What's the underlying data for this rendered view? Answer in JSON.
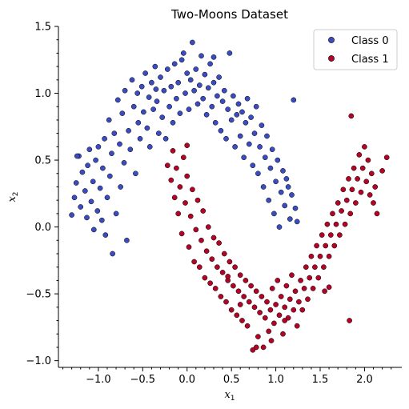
{
  "chart_data": {
    "type": "scatter",
    "title": "Two-Moons Dataset",
    "xlabel": "x",
    "xlabel_sub": "1",
    "ylabel": "x",
    "ylabel_sub": "2",
    "xlim": [
      -1.45,
      2.42
    ],
    "ylim": [
      -1.05,
      1.5
    ],
    "xticks": [
      -1.0,
      -0.5,
      0.0,
      0.5,
      1.0,
      1.5,
      2.0
    ],
    "xtick_labels": [
      "−1.0",
      "−0.5",
      "0.0",
      "0.5",
      "1.0",
      "1.5",
      "2.0"
    ],
    "yticks": [
      -1.0,
      -0.5,
      0.0,
      0.5,
      1.0,
      1.5
    ],
    "ytick_labels": [
      "−1.0",
      "−0.5",
      "0.0",
      "0.5",
      "1.0",
      "1.5"
    ],
    "grid": false,
    "legend_position": "top-right",
    "series": [
      {
        "name": "Class 0",
        "color": "#3b4cc0",
        "points": [
          [
            -1.3,
            0.09
          ],
          [
            -1.27,
            0.22
          ],
          [
            -1.25,
            0.33
          ],
          [
            -1.22,
            0.53
          ],
          [
            -1.2,
            0.15
          ],
          [
            -1.18,
            0.41
          ],
          [
            -1.15,
            0.27
          ],
          [
            -1.13,
            0.07
          ],
          [
            -1.12,
            0.46
          ],
          [
            -1.1,
            0.58
          ],
          [
            -1.08,
            0.19
          ],
          [
            -1.06,
            0.34
          ],
          [
            -1.05,
            -0.02
          ],
          [
            -1.03,
            0.5
          ],
          [
            -1.01,
            0.12
          ],
          [
            -1.0,
            0.6
          ],
          [
            -0.98,
            0.29
          ],
          [
            -0.96,
            0.05
          ],
          [
            -0.95,
            0.44
          ],
          [
            -0.93,
            0.66
          ],
          [
            -0.92,
            -0.06
          ],
          [
            -0.9,
            0.22
          ],
          [
            -0.88,
            0.8
          ],
          [
            -0.87,
            0.38
          ],
          [
            -0.85,
            0.55
          ],
          [
            -0.84,
            -0.2
          ],
          [
            -0.82,
            0.7
          ],
          [
            -0.8,
            0.1
          ],
          [
            -0.78,
            0.95
          ],
          [
            -0.76,
            0.62
          ],
          [
            -0.75,
            0.3
          ],
          [
            -0.73,
            0.85
          ],
          [
            -0.71,
            0.48
          ],
          [
            -0.7,
            1.02
          ],
          [
            -0.68,
            -0.1
          ],
          [
            -0.66,
            0.72
          ],
          [
            -0.64,
            0.58
          ],
          [
            -0.62,
            1.1
          ],
          [
            -0.6,
            0.9
          ],
          [
            -0.58,
            0.4
          ],
          [
            -0.56,
            1.0
          ],
          [
            -0.55,
            0.78
          ],
          [
            -0.53,
            0.66
          ],
          [
            -0.51,
            1.05
          ],
          [
            -0.49,
            0.86
          ],
          [
            -0.47,
            1.15
          ],
          [
            -0.45,
            0.74
          ],
          [
            -0.43,
            0.97
          ],
          [
            -0.42,
            0.6
          ],
          [
            -0.4,
            1.08
          ],
          [
            -0.38,
            0.88
          ],
          [
            -0.36,
            1.2
          ],
          [
            -0.34,
            0.94
          ],
          [
            -0.32,
            0.7
          ],
          [
            -0.3,
            1.12
          ],
          [
            -0.28,
            0.82
          ],
          [
            -0.26,
            1.02
          ],
          [
            -0.24,
            0.66
          ],
          [
            -0.22,
            1.18
          ],
          [
            -0.2,
            0.9
          ],
          [
            -0.18,
            1.05
          ],
          [
            -0.16,
            0.78
          ],
          [
            -0.14,
            1.22
          ],
          [
            -0.12,
            0.96
          ],
          [
            -0.1,
            1.08
          ],
          [
            -0.08,
            0.85
          ],
          [
            -0.06,
            1.25
          ],
          [
            -0.04,
            1.3
          ],
          [
            -0.02,
            1.0
          ],
          [
            0.0,
            1.15
          ],
          [
            0.02,
            0.88
          ],
          [
            0.04,
            1.1
          ],
          [
            0.06,
            1.38
          ],
          [
            0.08,
            1.02
          ],
          [
            0.1,
            1.18
          ],
          [
            0.12,
            0.92
          ],
          [
            0.14,
            1.06
          ],
          [
            0.16,
            1.28
          ],
          [
            0.18,
            0.96
          ],
          [
            0.2,
            1.14
          ],
          [
            0.22,
            0.84
          ],
          [
            0.24,
            1.04
          ],
          [
            0.26,
            1.22
          ],
          [
            0.28,
            0.9
          ],
          [
            0.3,
            1.08
          ],
          [
            0.32,
            0.78
          ],
          [
            0.34,
            0.98
          ],
          [
            0.36,
            1.12
          ],
          [
            0.38,
            0.72
          ],
          [
            0.4,
            0.94
          ],
          [
            0.42,
            1.02
          ],
          [
            0.44,
            0.66
          ],
          [
            0.46,
            0.88
          ],
          [
            0.48,
            1.3
          ],
          [
            0.5,
            0.8
          ],
          [
            0.52,
            0.98
          ],
          [
            0.54,
            0.6
          ],
          [
            0.56,
            0.84
          ],
          [
            0.58,
            0.92
          ],
          [
            0.6,
            0.68
          ],
          [
            0.62,
            0.86
          ],
          [
            0.64,
            0.52
          ],
          [
            0.66,
            0.78
          ],
          [
            0.68,
            0.96
          ],
          [
            0.7,
            0.62
          ],
          [
            0.72,
            0.82
          ],
          [
            0.74,
            0.46
          ],
          [
            0.76,
            0.7
          ],
          [
            0.78,
            0.9
          ],
          [
            0.8,
            0.4
          ],
          [
            0.82,
            0.6
          ],
          [
            0.84,
            0.76
          ],
          [
            0.86,
            0.3
          ],
          [
            0.88,
            0.52
          ],
          [
            0.9,
            0.68
          ],
          [
            0.92,
            0.2
          ],
          [
            0.94,
            0.44
          ],
          [
            0.96,
            0.58
          ],
          [
            0.98,
            0.1
          ],
          [
            1.0,
            0.34
          ],
          [
            1.02,
            0.5
          ],
          [
            1.04,
            0.0
          ],
          [
            1.06,
            0.26
          ],
          [
            1.08,
            0.42
          ],
          [
            1.1,
            0.16
          ],
          [
            1.12,
            0.36
          ],
          [
            1.14,
            0.3
          ],
          [
            1.16,
            0.06
          ],
          [
            1.18,
            0.24
          ],
          [
            1.2,
            0.95
          ],
          [
            1.22,
            0.14
          ],
          [
            1.24,
            0.04
          ],
          [
            -1.24,
            0.53
          ],
          [
            -0.35,
            1.03
          ],
          [
            0.3,
            1.27
          ]
        ]
      },
      {
        "name": "Class 1",
        "color": "#b40426",
        "points": [
          [
            -0.22,
            0.46
          ],
          [
            -0.18,
            0.35
          ],
          [
            -0.16,
            0.57
          ],
          [
            -0.14,
            0.22
          ],
          [
            -0.12,
            0.44
          ],
          [
            -0.1,
            0.1
          ],
          [
            -0.08,
            0.3
          ],
          [
            -0.06,
            -0.05
          ],
          [
            -0.04,
            0.52
          ],
          [
            -0.02,
            0.18
          ],
          [
            0.0,
            0.38
          ],
          [
            0.02,
            -0.15
          ],
          [
            0.04,
            0.08
          ],
          [
            0.06,
            0.28
          ],
          [
            0.08,
            -0.26
          ],
          [
            0.1,
            -0.02
          ],
          [
            0.12,
            0.2
          ],
          [
            0.14,
            -0.3
          ],
          [
            0.16,
            -0.1
          ],
          [
            0.18,
            0.12
          ],
          [
            0.2,
            -0.38
          ],
          [
            0.22,
            -0.18
          ],
          [
            0.24,
            0.0
          ],
          [
            0.26,
            -0.42
          ],
          [
            0.28,
            -0.24
          ],
          [
            0.3,
            -0.08
          ],
          [
            0.32,
            -0.46
          ],
          [
            0.34,
            -0.3
          ],
          [
            0.36,
            -0.12
          ],
          [
            0.38,
            -0.52
          ],
          [
            0.4,
            -0.34
          ],
          [
            0.42,
            -0.2
          ],
          [
            0.44,
            -0.56
          ],
          [
            0.46,
            -0.4
          ],
          [
            0.48,
            -0.26
          ],
          [
            0.5,
            -0.62
          ],
          [
            0.52,
            -0.44
          ],
          [
            0.54,
            -0.3
          ],
          [
            0.56,
            -0.66
          ],
          [
            0.58,
            -0.48
          ],
          [
            0.6,
            -0.36
          ],
          [
            0.62,
            -0.7
          ],
          [
            0.64,
            -0.52
          ],
          [
            0.66,
            -0.4
          ],
          [
            0.68,
            -0.74
          ],
          [
            0.7,
            -0.56
          ],
          [
            0.72,
            -0.44
          ],
          [
            0.74,
            -0.92
          ],
          [
            0.76,
            -0.6
          ],
          [
            0.78,
            -0.48
          ],
          [
            0.8,
            -0.82
          ],
          [
            0.82,
            -0.64
          ],
          [
            0.84,
            -0.52
          ],
          [
            0.86,
            -0.9
          ],
          [
            0.88,
            -0.68
          ],
          [
            0.9,
            -0.56
          ],
          [
            0.92,
            -0.78
          ],
          [
            0.94,
            -0.62
          ],
          [
            0.96,
            -0.46
          ],
          [
            0.98,
            -0.72
          ],
          [
            1.0,
            -0.58
          ],
          [
            1.02,
            -0.4
          ],
          [
            1.04,
            -0.66
          ],
          [
            1.06,
            -0.52
          ],
          [
            1.08,
            -0.8
          ],
          [
            1.1,
            -0.6
          ],
          [
            1.12,
            -0.44
          ],
          [
            1.14,
            -0.68
          ],
          [
            1.16,
            -0.54
          ],
          [
            1.18,
            -0.36
          ],
          [
            1.2,
            -0.62
          ],
          [
            1.22,
            -0.48
          ],
          [
            1.24,
            -0.74
          ],
          [
            1.26,
            -0.56
          ],
          [
            1.28,
            -0.4
          ],
          [
            1.3,
            -0.62
          ],
          [
            1.32,
            -0.46
          ],
          [
            1.34,
            -0.3
          ],
          [
            1.36,
            -0.54
          ],
          [
            1.38,
            -0.38
          ],
          [
            1.4,
            -0.22
          ],
          [
            1.42,
            -0.46
          ],
          [
            1.44,
            -0.3
          ],
          [
            1.46,
            -0.14
          ],
          [
            1.48,
            -0.38
          ],
          [
            1.5,
            -0.22
          ],
          [
            1.52,
            -0.06
          ],
          [
            1.54,
            -0.3
          ],
          [
            1.56,
            -0.14
          ],
          [
            1.58,
            0.02
          ],
          [
            1.6,
            -0.22
          ],
          [
            1.62,
            -0.06
          ],
          [
            1.64,
            0.1
          ],
          [
            1.66,
            -0.14
          ],
          [
            1.68,
            0.02
          ],
          [
            1.7,
            0.18
          ],
          [
            1.72,
            -0.06
          ],
          [
            1.74,
            0.12
          ],
          [
            1.76,
            0.28
          ],
          [
            1.78,
            0.02
          ],
          [
            1.8,
            0.2
          ],
          [
            1.82,
            0.36
          ],
          [
            1.84,
            0.1
          ],
          [
            1.86,
            0.28
          ],
          [
            1.88,
            0.44
          ],
          [
            1.9,
            0.18
          ],
          [
            1.92,
            0.36
          ],
          [
            1.94,
            0.54
          ],
          [
            1.96,
            0.26
          ],
          [
            1.98,
            0.44
          ],
          [
            2.0,
            0.6
          ],
          [
            2.02,
            0.34
          ],
          [
            2.04,
            0.5
          ],
          [
            2.06,
            0.24
          ],
          [
            2.08,
            0.4
          ],
          [
            2.1,
            0.18
          ],
          [
            2.12,
            0.3
          ],
          [
            2.14,
            0.1
          ],
          [
            2.2,
            0.42
          ],
          [
            2.25,
            0.52
          ],
          [
            1.85,
            0.83
          ],
          [
            1.55,
            -0.48
          ],
          [
            1.6,
            -0.45
          ],
          [
            1.83,
            -0.7
          ],
          [
            0.78,
            -0.9
          ],
          [
            0.95,
            -0.85
          ],
          [
            0.0,
            0.61
          ],
          [
            0.46,
            -0.37
          ],
          [
            0.6,
            -0.58
          ],
          [
            1.1,
            -0.7
          ]
        ]
      }
    ]
  }
}
